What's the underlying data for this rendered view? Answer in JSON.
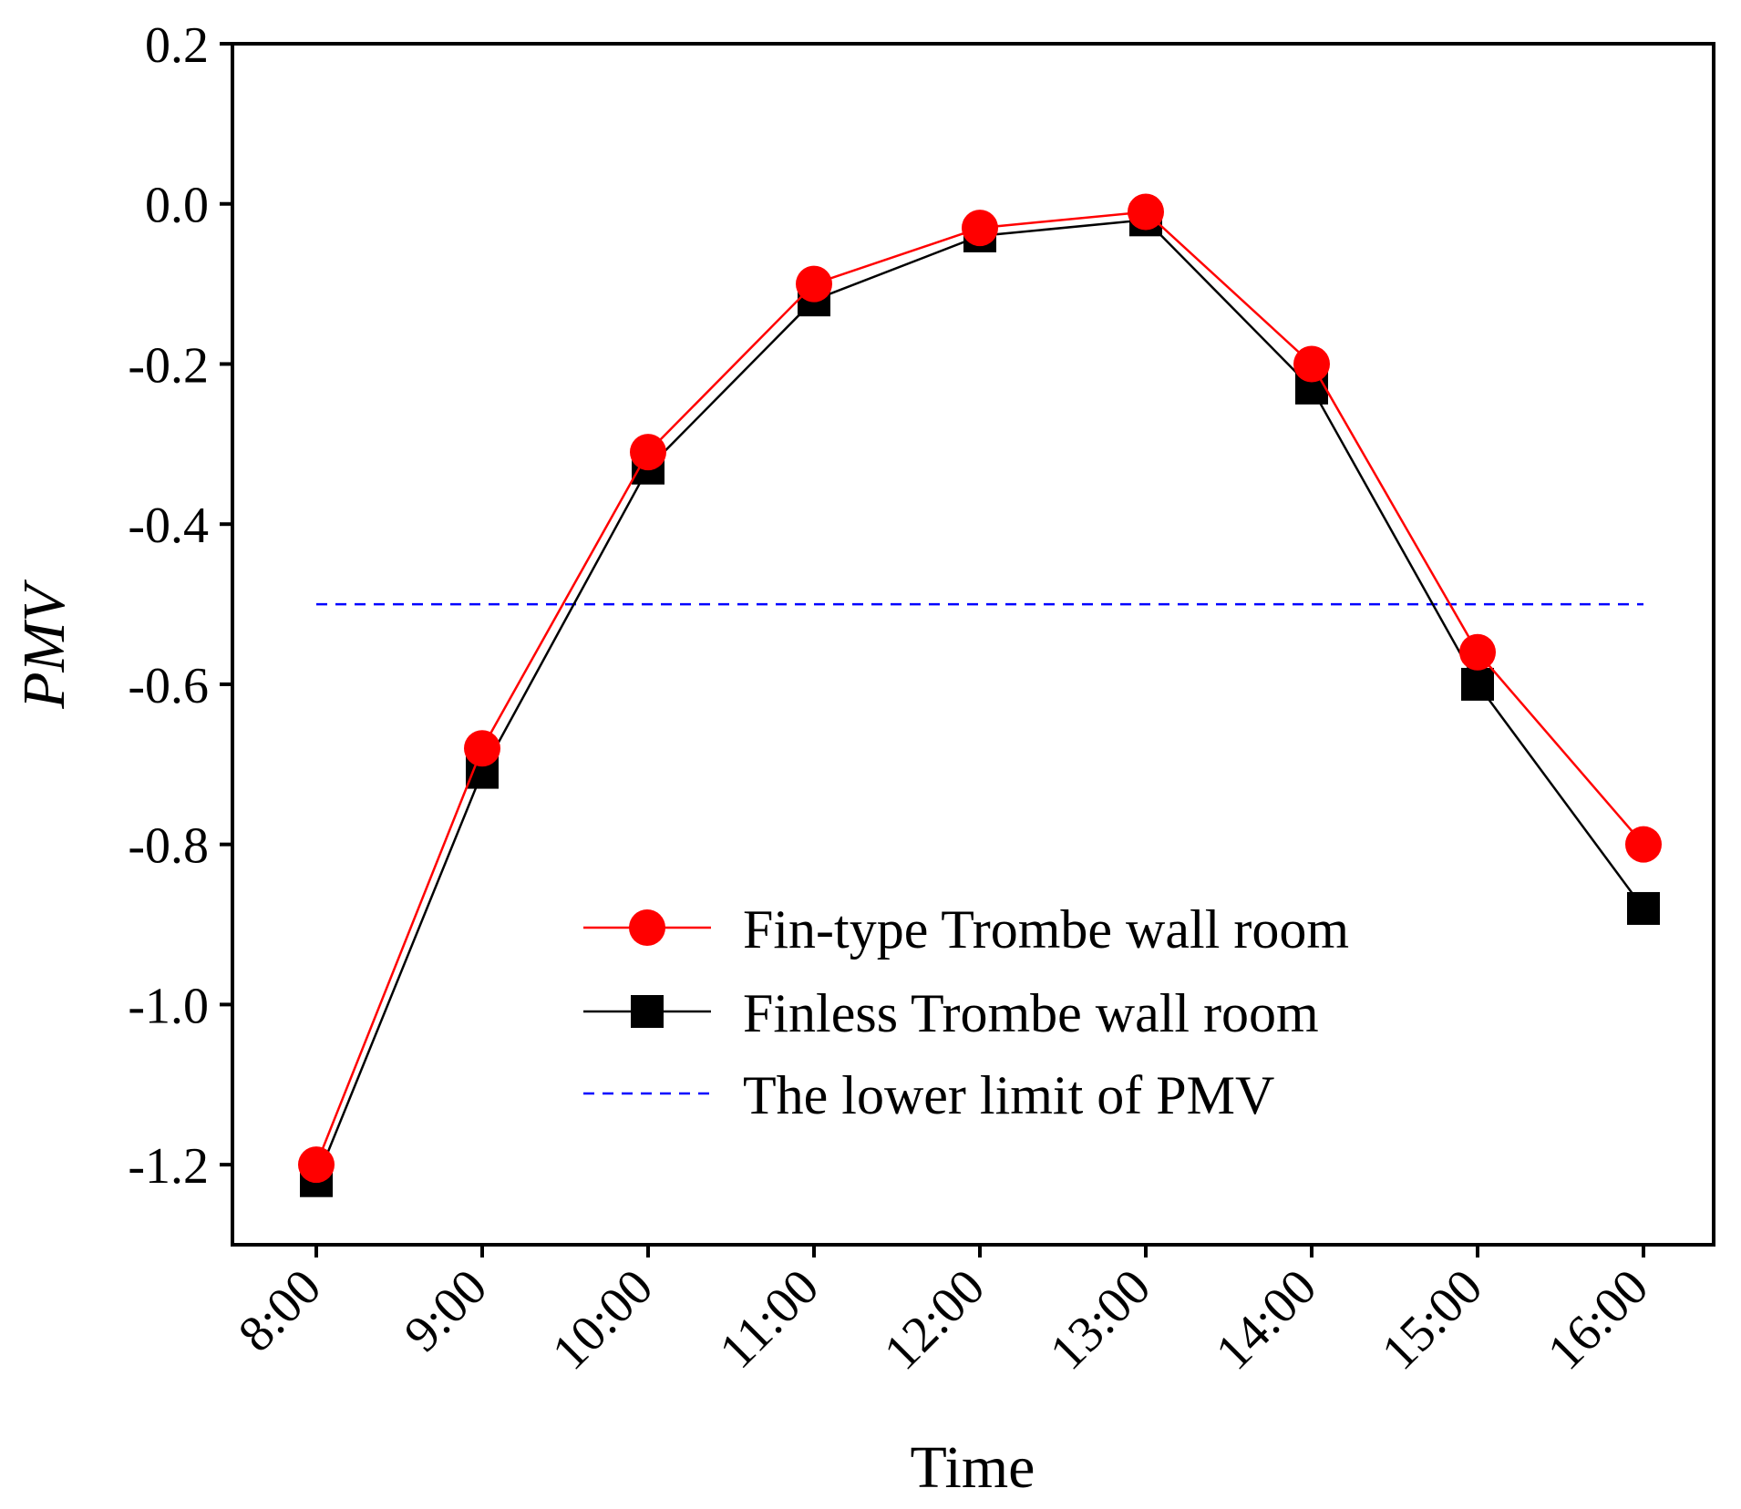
{
  "chart_data": {
    "type": "line",
    "title": "",
    "xlabel": "Time",
    "ylabel": "PMV",
    "categories": [
      "8:00",
      "9:00",
      "10:00",
      "11:00",
      "12:00",
      "13:00",
      "14:00",
      "15:00",
      "16:00"
    ],
    "ylim": [
      -1.3,
      0.2
    ],
    "yticks": [
      0.2,
      0.0,
      -0.2,
      -0.4,
      -0.6,
      -0.8,
      -1.0,
      -1.2
    ],
    "ytick_labels": [
      "0.2",
      "0.0",
      "-0.2",
      "-0.4",
      "-0.6",
      "-0.8",
      "-1.0",
      "-1.2"
    ],
    "grid": false,
    "legend_position": "lower-center",
    "series": [
      {
        "name": "Fin-type Trombe wall room",
        "color": "#ff0000",
        "marker": "circle",
        "values": [
          -1.2,
          -0.68,
          -0.31,
          -0.1,
          -0.03,
          -0.01,
          -0.2,
          -0.56,
          -0.8
        ]
      },
      {
        "name": "Finless Trombe wall room",
        "color": "#000000",
        "marker": "square",
        "values": [
          -1.22,
          -0.71,
          -0.33,
          -0.12,
          -0.04,
          -0.02,
          -0.23,
          -0.6,
          -0.88
        ]
      }
    ],
    "reference_line": {
      "name": "The lower limit of PMV",
      "color": "#0000ff",
      "style": "dashed",
      "value": -0.5
    }
  }
}
